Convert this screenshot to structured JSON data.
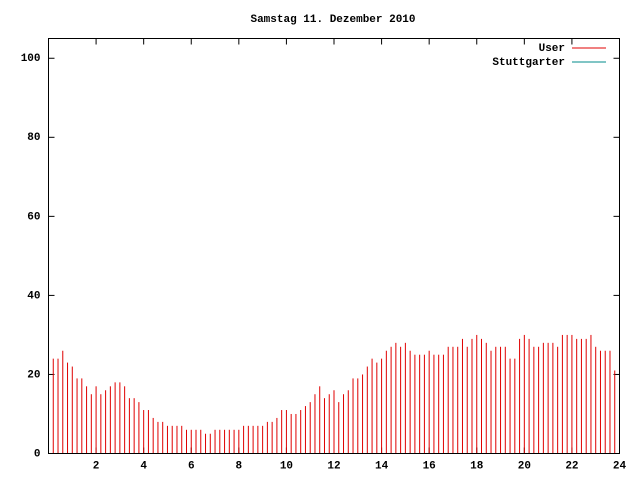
{
  "chart_data": {
    "type": "impulses",
    "title": "Samstag 11. Dezember 2010",
    "x": [
      0,
      0.2,
      0.4,
      0.6,
      0.8,
      1,
      1.2,
      1.4,
      1.6,
      1.8,
      2,
      2.2,
      2.4,
      2.6,
      2.8,
      3,
      3.2,
      3.4,
      3.6,
      3.8,
      4,
      4.2,
      4.4,
      4.6,
      4.8,
      5,
      5.2,
      5.4,
      5.6,
      5.8,
      6,
      6.2,
      6.4,
      6.6,
      6.8,
      7,
      7.2,
      7.4,
      7.6,
      7.8,
      8,
      8.2,
      8.4,
      8.6,
      8.8,
      9,
      9.2,
      9.4,
      9.6,
      9.8,
      10,
      10.2,
      10.4,
      10.6,
      10.8,
      11,
      11.2,
      11.4,
      11.6,
      11.8,
      12,
      12.2,
      12.4,
      12.6,
      12.8,
      13,
      13.2,
      13.4,
      13.6,
      13.8,
      14,
      14.2,
      14.4,
      14.6,
      14.8,
      15,
      15.2,
      15.4,
      15.6,
      15.8,
      16,
      16.2,
      16.4,
      16.6,
      16.8,
      17,
      17.2,
      17.4,
      17.6,
      17.8,
      18,
      18.2,
      18.4,
      18.6,
      18.8,
      19,
      19.2,
      19.4,
      19.6,
      19.8,
      20,
      20.2,
      20.4,
      20.6,
      20.8,
      21,
      21.2,
      21.4,
      21.6,
      21.8,
      22,
      22.2,
      22.4,
      22.6,
      22.8,
      23,
      23.2,
      23.4,
      23.6,
      23.8
    ],
    "series": [
      {
        "name": "User",
        "color": "#e00000",
        "values": [
          25,
          24,
          24,
          26,
          23,
          22,
          19,
          19,
          17,
          15,
          17,
          15,
          16,
          17,
          18,
          18,
          17,
          14,
          14,
          13,
          11,
          11,
          9,
          8,
          8,
          7,
          7,
          7,
          7,
          6,
          6,
          6,
          6,
          5,
          5,
          6,
          6,
          6,
          6,
          6,
          6,
          7,
          7,
          7,
          7,
          7,
          8,
          8,
          9,
          11,
          11,
          10,
          10,
          11,
          12,
          13,
          15,
          17,
          14,
          15,
          16,
          13,
          15,
          16,
          19,
          19,
          20,
          22,
          24,
          23,
          24,
          26,
          27,
          28,
          27,
          28,
          26,
          25,
          25,
          25,
          26,
          25,
          25,
          25,
          27,
          27,
          27,
          29,
          27,
          29,
          30,
          29,
          28,
          26,
          27,
          27,
          27,
          24,
          24,
          29,
          30,
          29,
          27,
          27,
          28,
          28,
          28,
          27,
          30,
          30,
          30,
          29,
          29,
          29,
          30,
          27,
          26,
          26,
          26,
          21
        ]
      },
      {
        "name": "Stuttgarter",
        "color": "#008b8b",
        "values": [
          null,
          null,
          null,
          null,
          null,
          null,
          null,
          null,
          null,
          null,
          null,
          null,
          null,
          null,
          null,
          null,
          null,
          null,
          null,
          null,
          null,
          null,
          null,
          null,
          null,
          null,
          null,
          null,
          null,
          null,
          null,
          null,
          null,
          null,
          null,
          null,
          null,
          null,
          null,
          null,
          null,
          null,
          null,
          null,
          null,
          null,
          null,
          null,
          null,
          null,
          null,
          null,
          null,
          null,
          null,
          null,
          null,
          null,
          null,
          null,
          null,
          null,
          null,
          null,
          null,
          null,
          null,
          null,
          null,
          null,
          null,
          null,
          null,
          null,
          null,
          null,
          null,
          null,
          null,
          null,
          null,
          null,
          null,
          null,
          null,
          null,
          null,
          null,
          null,
          null,
          null,
          null,
          null,
          null,
          null,
          null,
          null,
          null,
          null,
          null,
          null,
          null,
          null,
          null,
          null,
          null,
          null,
          null,
          null,
          null,
          null,
          null,
          null,
          null,
          null,
          null,
          null,
          null,
          null,
          null
        ]
      }
    ],
    "xlim": [
      0,
      24
    ],
    "xticks": [
      2,
      4,
      6,
      8,
      10,
      12,
      14,
      16,
      18,
      20,
      22,
      24
    ],
    "ylim": [
      0,
      105
    ],
    "yticks": [
      0,
      20,
      40,
      60,
      80,
      100
    ],
    "legend": "top-right"
  }
}
